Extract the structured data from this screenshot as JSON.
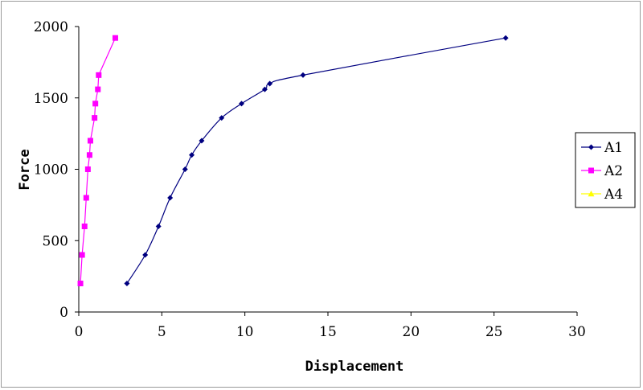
{
  "chart_data": {
    "type": "scatter",
    "xlabel": "Displacement",
    "ylabel": "Force",
    "xlim": [
      0,
      30
    ],
    "ylim": [
      0,
      2000
    ],
    "xticks": [
      0,
      5,
      10,
      15,
      20,
      25,
      30
    ],
    "yticks": [
      0,
      500,
      1000,
      1500,
      2000
    ],
    "grid": false,
    "legend_position": "right",
    "series": [
      {
        "name": "A1",
        "color": "#000080",
        "marker": "diamond",
        "smooth": true,
        "points": [
          [
            2.9,
            200
          ],
          [
            4.0,
            400
          ],
          [
            4.8,
            600
          ],
          [
            5.5,
            800
          ],
          [
            6.4,
            1000
          ],
          [
            6.8,
            1100
          ],
          [
            7.4,
            1200
          ],
          [
            8.6,
            1360
          ],
          [
            9.8,
            1460
          ],
          [
            11.2,
            1560
          ],
          [
            11.5,
            1600
          ],
          [
            13.5,
            1660
          ],
          [
            25.7,
            1920
          ]
        ]
      },
      {
        "name": "A2",
        "color": "#ff00ff",
        "marker": "square",
        "smooth": false,
        "points": [
          [
            0.1,
            200
          ],
          [
            0.2,
            400
          ],
          [
            0.35,
            600
          ],
          [
            0.45,
            800
          ],
          [
            0.55,
            1000
          ],
          [
            0.65,
            1100
          ],
          [
            0.7,
            1200
          ],
          [
            0.95,
            1360
          ],
          [
            1.0,
            1460
          ],
          [
            1.15,
            1560
          ],
          [
            1.2,
            1660
          ],
          [
            2.2,
            1920
          ]
        ]
      },
      {
        "name": "A4",
        "color": "#ffff00",
        "marker": "triangle",
        "smooth": false,
        "points": []
      }
    ]
  }
}
